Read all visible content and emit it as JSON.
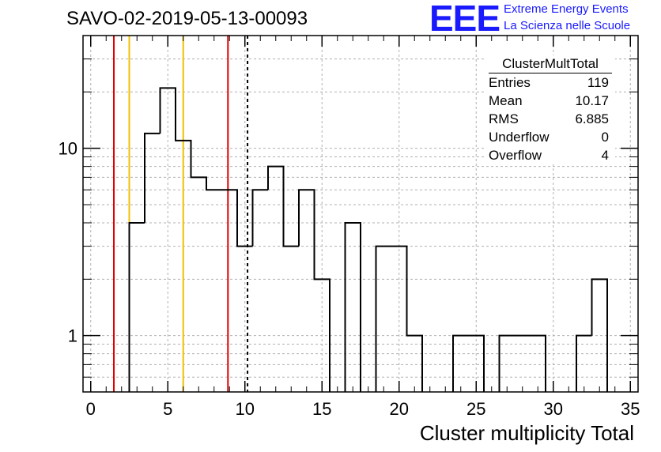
{
  "header": {
    "run_title": "SAVO-02-2019-05-13-00093",
    "logo_text": "EEE",
    "logo_line1": "Extreme Energy Events",
    "logo_line2": "La Scienza nelle Scuole",
    "logo_color": "#1a1aff"
  },
  "stats_box": {
    "title": "ClusterMultTotal",
    "rows": [
      {
        "label": "Entries",
        "value": "119"
      },
      {
        "label": "Mean",
        "value": "10.17"
      },
      {
        "label": "RMS",
        "value": "6.885"
      },
      {
        "label": "Underflow",
        "value": "0"
      },
      {
        "label": "Overflow",
        "value": "4"
      }
    ]
  },
  "chart_data": {
    "type": "histogram",
    "xlabel": "Cluster multiplicity Total",
    "ylabel": "",
    "x_range": [
      -0.5,
      35.5
    ],
    "y_scale": "log",
    "y_range": [
      0.5,
      40
    ],
    "grid": true,
    "x_ticks": [
      "0",
      "5",
      "10",
      "15",
      "20",
      "25",
      "30",
      "35"
    ],
    "y_ticks": [
      {
        "value": 1,
        "label": "1"
      },
      {
        "value": 10,
        "label": "10"
      }
    ],
    "bin_width": 1,
    "bins": [
      {
        "x": 0,
        "count": 0
      },
      {
        "x": 1,
        "count": 0
      },
      {
        "x": 2,
        "count": 0
      },
      {
        "x": 3,
        "count": 4
      },
      {
        "x": 4,
        "count": 12
      },
      {
        "x": 5,
        "count": 21
      },
      {
        "x": 6,
        "count": 11
      },
      {
        "x": 7,
        "count": 7
      },
      {
        "x": 8,
        "count": 6
      },
      {
        "x": 9,
        "count": 6
      },
      {
        "x": 10,
        "count": 3
      },
      {
        "x": 11,
        "count": 6
      },
      {
        "x": 12,
        "count": 8
      },
      {
        "x": 13,
        "count": 3
      },
      {
        "x": 14,
        "count": 6
      },
      {
        "x": 15,
        "count": 2
      },
      {
        "x": 16,
        "count": 0
      },
      {
        "x": 17,
        "count": 4
      },
      {
        "x": 18,
        "count": 0
      },
      {
        "x": 19,
        "count": 3
      },
      {
        "x": 20,
        "count": 3
      },
      {
        "x": 21,
        "count": 1
      },
      {
        "x": 22,
        "count": 0
      },
      {
        "x": 23,
        "count": 0
      },
      {
        "x": 24,
        "count": 1
      },
      {
        "x": 25,
        "count": 1
      },
      {
        "x": 26,
        "count": 0
      },
      {
        "x": 27,
        "count": 1
      },
      {
        "x": 28,
        "count": 1
      },
      {
        "x": 29,
        "count": 1
      },
      {
        "x": 30,
        "count": 0
      },
      {
        "x": 31,
        "count": 0
      },
      {
        "x": 32,
        "count": 1
      },
      {
        "x": 33,
        "count": 2
      },
      {
        "x": 34,
        "count": 0
      }
    ],
    "reference_lines": [
      {
        "x": 1.5,
        "color": "#e00000",
        "style": "solid"
      },
      {
        "x": 2.5,
        "color": "#f0c000",
        "style": "solid"
      },
      {
        "x": 6.0,
        "color": "#f0c000",
        "style": "solid"
      },
      {
        "x": 8.9,
        "color": "#e00000",
        "style": "solid"
      },
      {
        "x": 10.17,
        "color": "#000000",
        "style": "dashed"
      }
    ]
  }
}
